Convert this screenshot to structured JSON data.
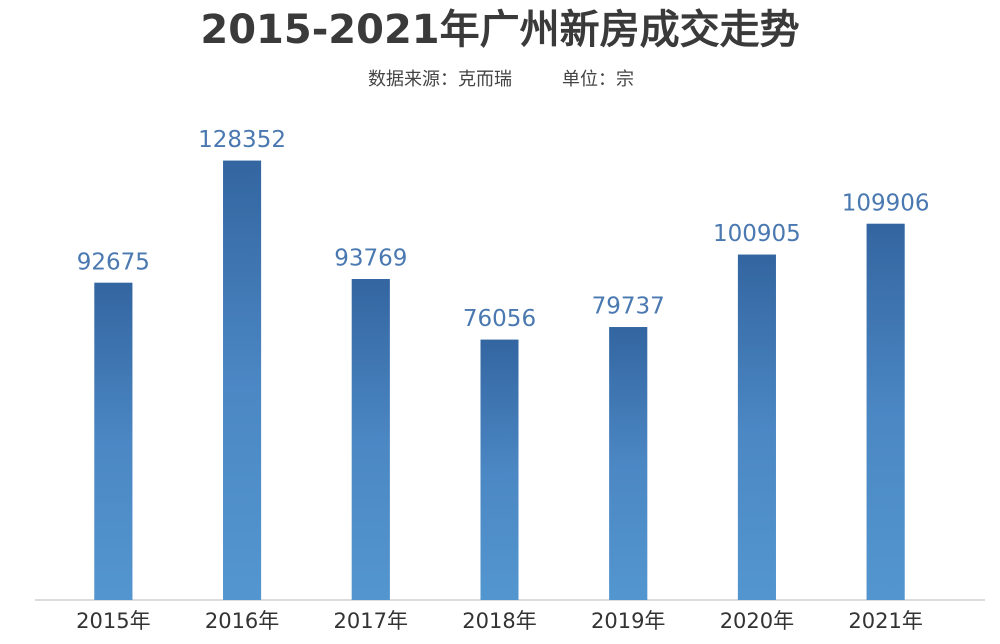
{
  "chart_data": {
    "type": "bar",
    "title": "2015-2021年广州新房成交走势",
    "subtitle": "数据来源：克而瑞",
    "unit": "单位：宗",
    "categories": [
      "2015年",
      "2016年",
      "2017年",
      "2018年",
      "2019年",
      "2020年",
      "2021年"
    ],
    "values": [
      92675,
      128352,
      93769,
      76056,
      79737,
      100905,
      109906
    ],
    "color": "#3f78b5",
    "ylim": [
      0,
      130000
    ]
  }
}
